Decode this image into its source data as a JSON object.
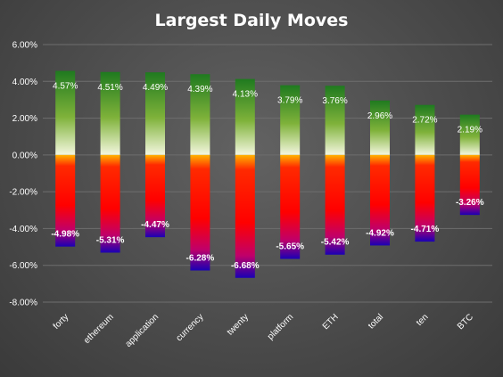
{
  "chart_data": {
    "type": "bar",
    "title": "Largest Daily Moves",
    "categories": [
      "forty",
      "ethereum",
      "application",
      "currency",
      "twenty",
      "platform",
      "ETH",
      "total",
      "ten",
      "BTC"
    ],
    "series": [
      {
        "values": [
          4.57,
          4.51,
          4.49,
          4.39,
          4.13,
          3.79,
          3.76,
          2.96,
          2.72,
          2.19
        ]
      },
      {
        "values": [
          -4.98,
          -5.31,
          -4.47,
          -6.28,
          -6.68,
          -5.65,
          -5.42,
          -4.92,
          -4.71,
          -3.26
        ]
      }
    ],
    "positive_labels": [
      "4.57%",
      "4.51%",
      "4.49%",
      "4.39%",
      "4.13%",
      "3.79%",
      "3.76%",
      "2.96%",
      "2.72%",
      "2.19%"
    ],
    "negative_labels": [
      "-4.98%",
      "-5.31%",
      "-4.47%",
      "-6.28%",
      "-6.68%",
      "-5.65%",
      "-5.42%",
      "-4.92%",
      "-4.71%",
      "-3.26%"
    ],
    "yticks": [
      6,
      4,
      2,
      0,
      -2,
      -4,
      -6,
      -8
    ],
    "ytick_labels": [
      "6.00%",
      "4.00%",
      "2.00%",
      "0.00%",
      "-2.00%",
      "-4.00%",
      "-6.00%",
      "-8.00%"
    ],
    "ylim": [
      -8,
      6
    ],
    "unit": "%",
    "grid": true,
    "legend": "none",
    "colors": {
      "positive_top": "#1f7a1f",
      "positive_mid": "#7fb23a",
      "positive_base": "#f4f7df",
      "negative_base": "#ffb300",
      "negative_mid": "#ff0000",
      "negative_low": "#c0006a",
      "negative_tip": "#1a00b4"
    }
  }
}
